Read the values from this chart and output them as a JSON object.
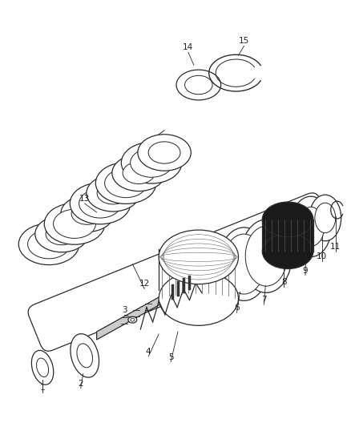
{
  "background_color": "#ffffff",
  "line_color": "#2a2a2a",
  "label_color": "#222222",
  "figsize": [
    4.38,
    5.33
  ],
  "dpi": 100
}
